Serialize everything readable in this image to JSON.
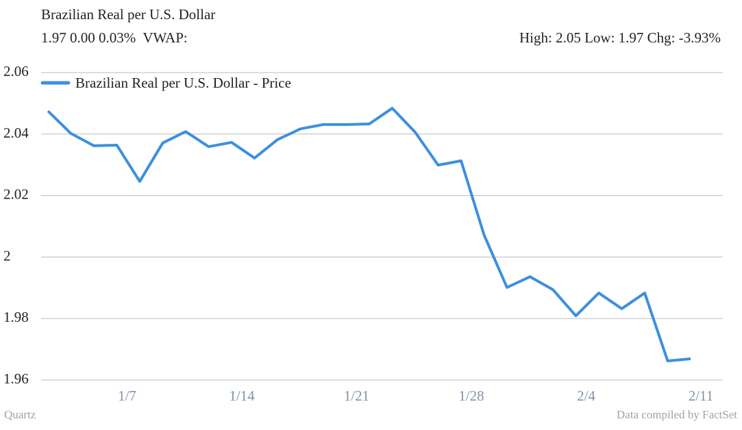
{
  "chart_data": {
    "type": "line",
    "title": "Brazilian Real per U.S. Dollar",
    "subtitle": "1.97 0.00 0.03%  VWAP:",
    "stats": "High: 2.05 Low: 1.97 Chg: -3.93%",
    "source": "Quartz",
    "credit": "Data compiled by FactSet",
    "categories": [
      null,
      null,
      null,
      "1/7",
      null,
      null,
      null,
      null,
      "1/14",
      null,
      null,
      null,
      null,
      "1/21",
      null,
      null,
      null,
      null,
      "1/28",
      null,
      null,
      null,
      null,
      "2/4",
      null,
      null,
      null,
      null,
      "2/11"
    ],
    "series": [
      {
        "name": "Brazilian Real per U.S. Dollar - Price",
        "color": "#3d8fe0",
        "values": [
          2.0475,
          2.0402,
          2.0362,
          2.0364,
          2.0246,
          2.0371,
          2.0408,
          2.0359,
          2.0373,
          2.0322,
          2.0382,
          2.0417,
          2.0431,
          2.0431,
          2.0433,
          2.0484,
          2.0406,
          2.0299,
          2.0313,
          2.0072,
          1.9901,
          1.9936,
          1.9894,
          1.9809,
          1.9883,
          1.9832,
          1.9883,
          1.9662,
          1.9669
        ]
      }
    ],
    "ylim": [
      1.96,
      2.06
    ],
    "yticks": [
      1.96,
      1.98,
      2,
      2.02,
      2.04,
      2.06
    ],
    "grid": true,
    "legend": "top-left"
  }
}
